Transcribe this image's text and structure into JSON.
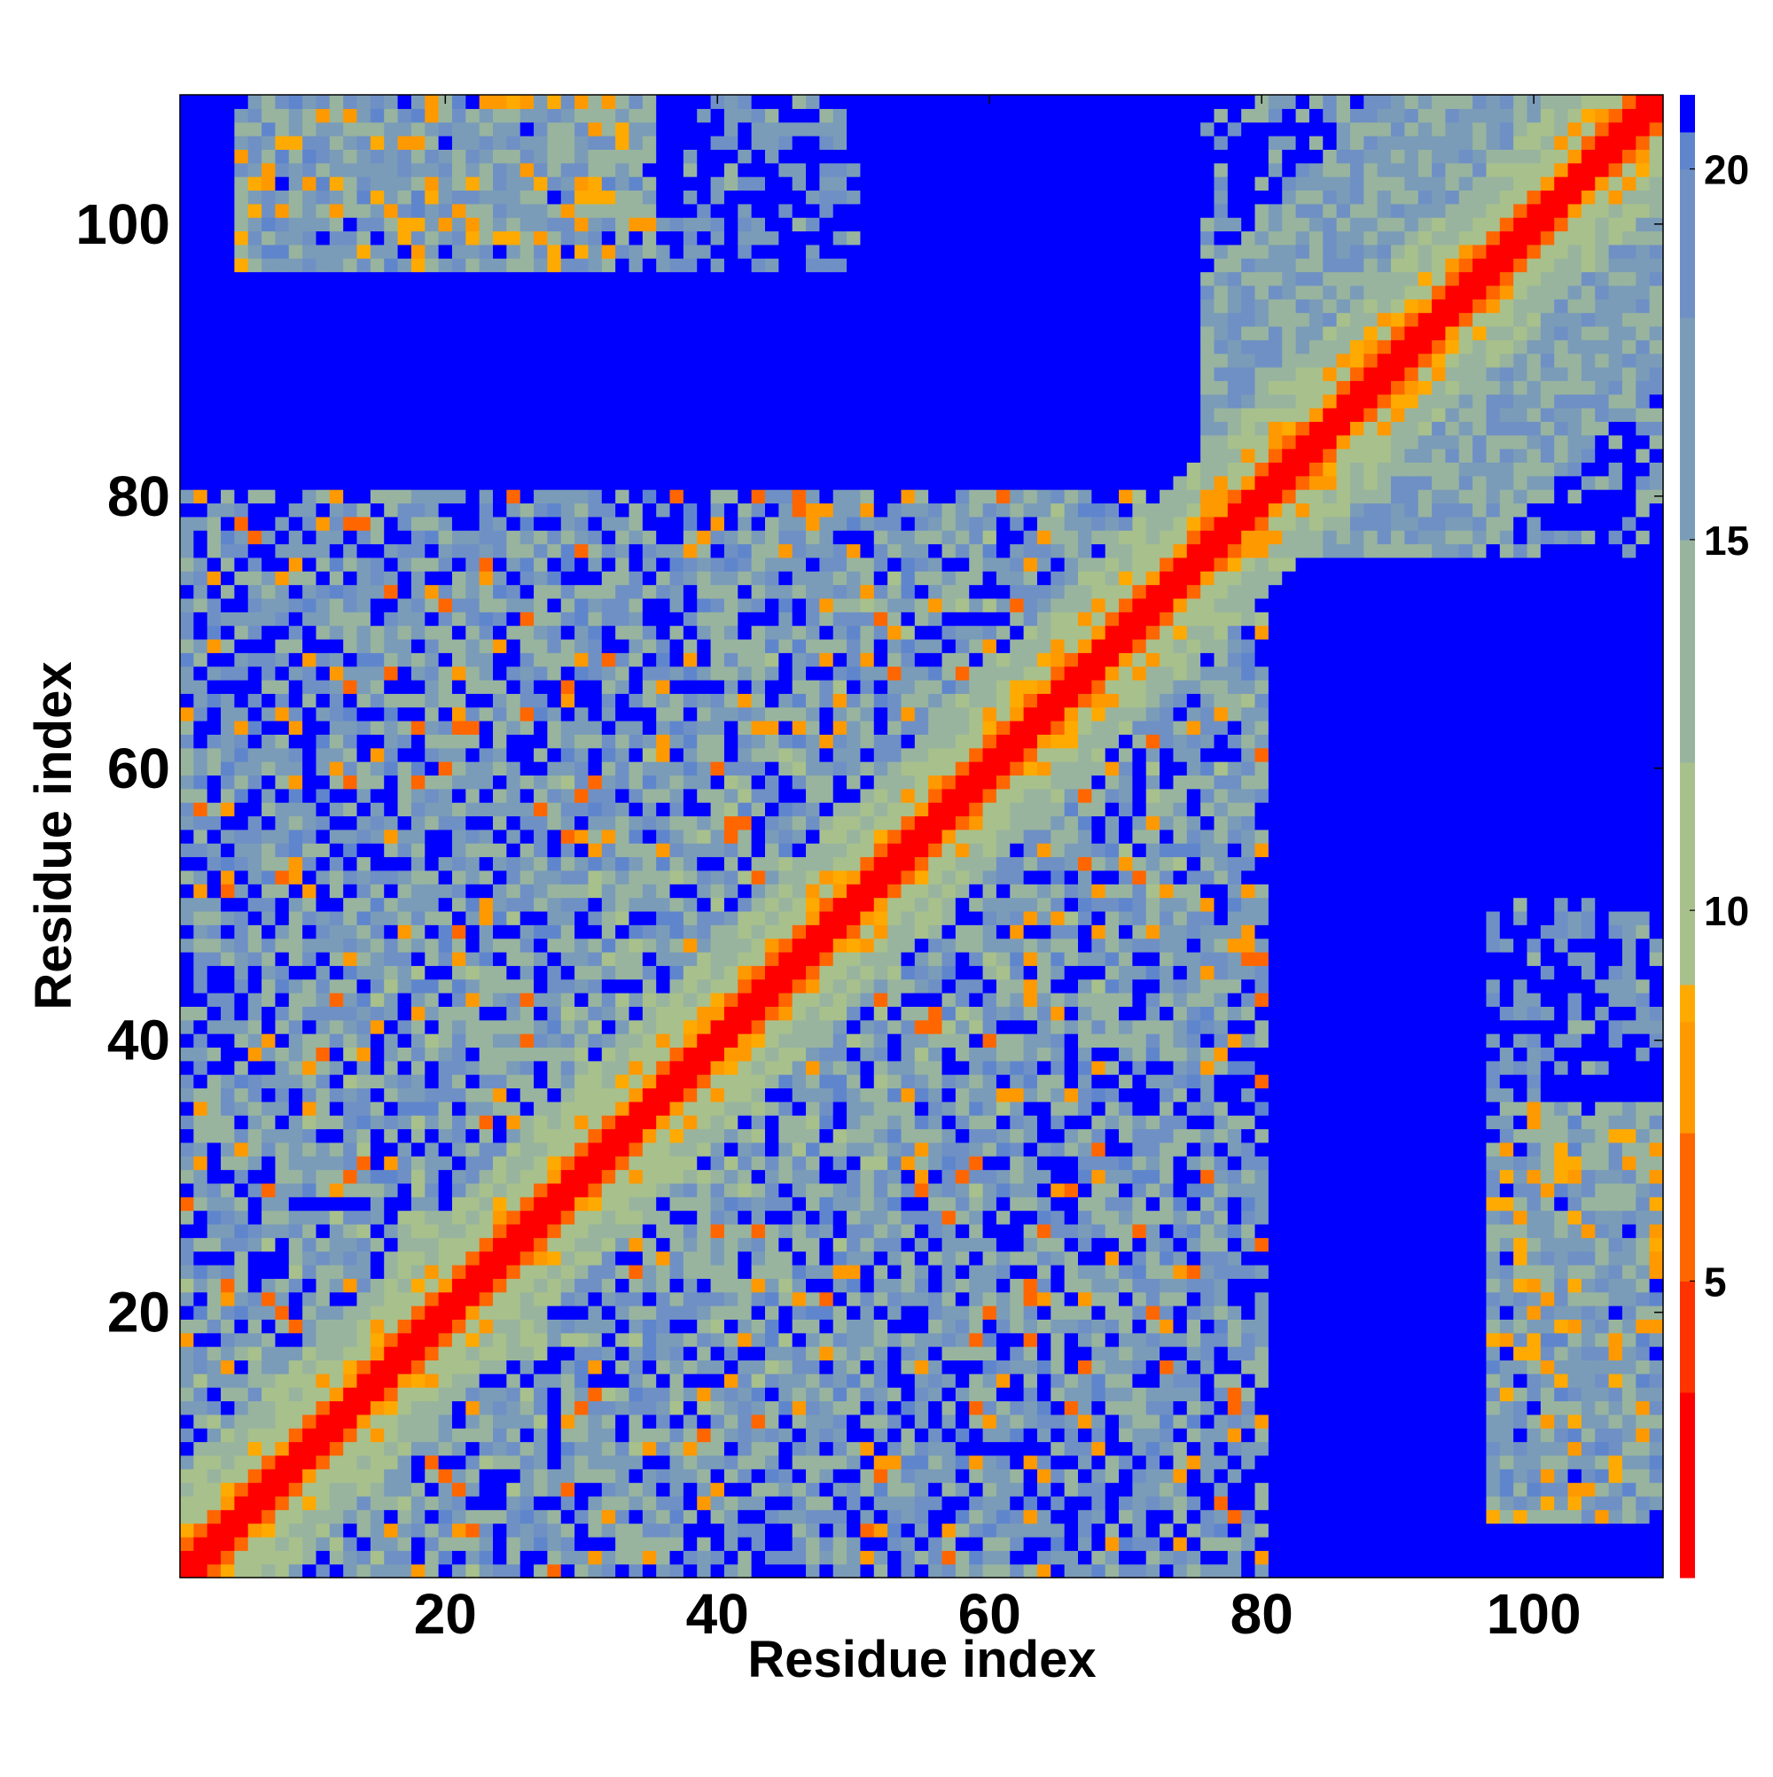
{
  "chart_data": {
    "type": "heatmap",
    "title": "",
    "xlabel": "Residue index",
    "ylabel": "Residue index",
    "n_residues": 109,
    "x_range": [
      1,
      109
    ],
    "y_range": [
      1,
      109
    ],
    "x_ticks": [
      20,
      40,
      60,
      80,
      100
    ],
    "y_ticks": [
      20,
      40,
      60,
      80,
      100
    ],
    "colorbar": {
      "ticks": [
        5,
        10,
        15,
        20
      ],
      "range": [
        1,
        21
      ],
      "position": "right",
      "color_stops": [
        {
          "value": 1,
          "color": "#ff0000"
        },
        {
          "value": 3.5,
          "color": "#ff3300"
        },
        {
          "value": 5,
          "color": "#ff6600"
        },
        {
          "value": 7,
          "color": "#ff9900"
        },
        {
          "value": 8.5,
          "color": "#ffaa00"
        },
        {
          "value": 9,
          "color": "#a8c08c"
        },
        {
          "value": 12,
          "color": "#98b49e"
        },
        {
          "value": 15,
          "color": "#7a9cb8"
        },
        {
          "value": 18,
          "color": "#6f90c4"
        },
        {
          "value": 20,
          "color": "#5f86cc"
        },
        {
          "value": 20.5,
          "color": "#0000ff"
        },
        {
          "value": 21,
          "color": "#0000ff"
        }
      ]
    },
    "values_description_rows": [
      "Distance matrix between residues (symmetric). Diagonal ~1 (red). Near-diagonal band 4-8 (orange). Residues 1-80 form a compact domain with distances 9-19. Residues 1-30 vs 80-109 mostly >20 except a small cluster near 100-109 vs 1-40 (~12-18). Residues 100-109 vs 80-100 intermediate band. Remaining off-domain region >20 (blue)."
    ],
    "grid": false,
    "legend": "colorbar-right"
  }
}
